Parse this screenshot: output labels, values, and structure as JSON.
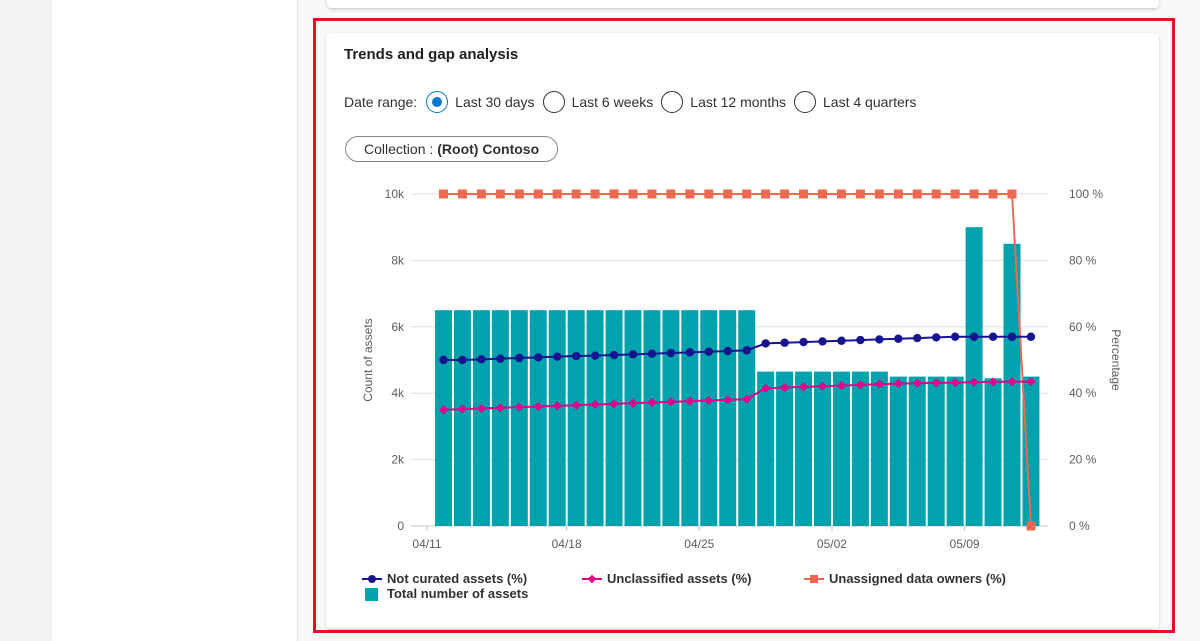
{
  "card": {
    "title": "Trends and gap analysis",
    "date_range": {
      "label": "Date range:",
      "options": [
        {
          "label": "Last 30 days",
          "selected": true
        },
        {
          "label": "Last 6 weeks",
          "selected": false
        },
        {
          "label": "Last 12 months",
          "selected": false
        },
        {
          "label": "Last 4 quarters",
          "selected": false
        }
      ]
    },
    "collection": {
      "prefix": "Collection :",
      "value": "(Root) Contoso"
    }
  },
  "colors": {
    "not_curated": "#16148e",
    "unclassified": "#e3008c",
    "unassigned": "#ed6a50",
    "total": "#00a2ad",
    "accent": "#0078d4",
    "highlight": "#e81123"
  },
  "chart_data": {
    "type": "bar",
    "x_ticks": [
      "04/11",
      "04/18",
      "04/25",
      "05/02",
      "05/09"
    ],
    "y_left": {
      "label": "Count of assets",
      "ticks": [
        "0",
        "2k",
        "4k",
        "6k",
        "8k",
        "10k"
      ],
      "range": [
        0,
        10000
      ]
    },
    "y_right": {
      "label": "Percentage",
      "ticks": [
        "0 %",
        "20 %",
        "40 %",
        "60 %",
        "80 %",
        "100 %"
      ],
      "range": [
        0,
        100
      ]
    },
    "grid": true,
    "legend_position": "bottom",
    "total_assets": [
      6500,
      6500,
      6500,
      6500,
      6500,
      6500,
      6500,
      6500,
      6500,
      6500,
      6500,
      6500,
      6500,
      6500,
      6500,
      6500,
      6500,
      4650,
      4650,
      4650,
      4650,
      4650,
      4650,
      4650,
      4500,
      4500,
      4500,
      4500,
      9000,
      4450,
      8500,
      4500
    ],
    "series": [
      {
        "name": "Not curated assets (%)",
        "values": [
          50,
          50,
          50.2,
          50.4,
          50.6,
          50.8,
          51,
          51.2,
          51.3,
          51.5,
          51.7,
          51.9,
          52.1,
          52.3,
          52.5,
          52.7,
          52.9,
          55,
          55.2,
          55.4,
          55.6,
          55.8,
          56,
          56.2,
          56.4,
          56.6,
          56.8,
          57,
          57,
          57,
          57,
          57
        ]
      },
      {
        "name": "Unclassified assets (%)",
        "values": [
          35,
          35.2,
          35.4,
          35.6,
          35.8,
          36,
          36.2,
          36.4,
          36.6,
          36.8,
          37,
          37.2,
          37.4,
          37.6,
          37.8,
          38,
          38.2,
          41.5,
          41.7,
          41.9,
          42.1,
          42.3,
          42.5,
          42.7,
          42.9,
          43,
          43.1,
          43.2,
          43.3,
          43.4,
          43.5,
          43.5
        ]
      },
      {
        "name": "Unassigned data owners (%)",
        "values": [
          100,
          100,
          100,
          100,
          100,
          100,
          100,
          100,
          100,
          100,
          100,
          100,
          100,
          100,
          100,
          100,
          100,
          100,
          100,
          100,
          100,
          100,
          100,
          100,
          100,
          100,
          100,
          100,
          100,
          100,
          100,
          0
        ]
      },
      {
        "name": "Total number of assets",
        "values_ref": "total_assets"
      }
    ]
  }
}
